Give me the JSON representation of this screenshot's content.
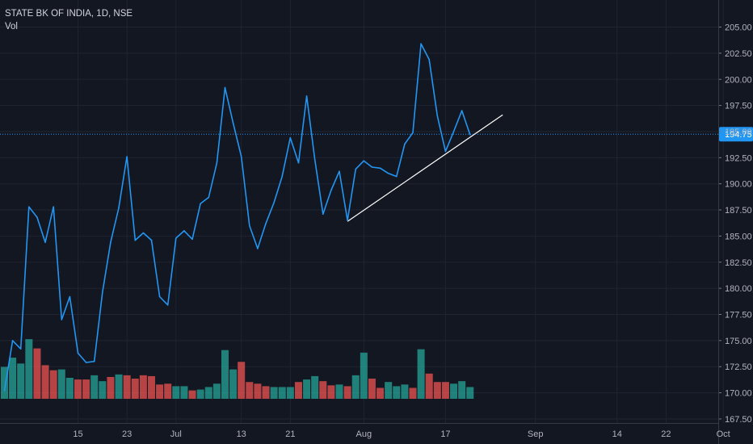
{
  "legend": {
    "symbol_line": "STATE BK OF INDIA, 1D, NSE",
    "volume_label": "Vol"
  },
  "colors": {
    "background": "#131722",
    "grid": "#1f2430",
    "line": "#2196f3",
    "trendline": "#ffffff",
    "volume_up": "#26a69a",
    "volume_down": "#ef5350",
    "last_price_tag": "#2196f3",
    "axis_text": "#b2b5be"
  },
  "chart_data": {
    "type": "line",
    "title": "STATE BK OF INDIA, 1D, NSE",
    "xlabel": "",
    "ylabel": "",
    "ylim": [
      166.8,
      206.2
    ],
    "y_ticks": [
      "205.00",
      "202.50",
      "200.00",
      "197.50",
      "195.00",
      "192.50",
      "190.00",
      "187.50",
      "185.00",
      "182.50",
      "180.00",
      "177.50",
      "175.00",
      "172.50",
      "170.00",
      "167.50"
    ],
    "x_tick_labels": [
      {
        "label": "15",
        "index": 9
      },
      {
        "label": "23",
        "index": 15
      },
      {
        "label": "Jul",
        "index": 21
      },
      {
        "label": "13",
        "index": 29
      },
      {
        "label": "21",
        "index": 35
      },
      {
        "label": "Aug",
        "index": 44
      },
      {
        "label": "17",
        "index": 54
      },
      {
        "label": "Sep",
        "index": 65
      },
      {
        "label": "14",
        "index": 75
      },
      {
        "label": "22",
        "index": 81
      },
      {
        "label": "Oct",
        "index": 88
      }
    ],
    "x_index_range": [
      0,
      92
    ],
    "grid": true,
    "series": [
      {
        "values": [
          170.2,
          175.0,
          174.2,
          187.8,
          186.8,
          184.4,
          187.8,
          177.0,
          179.2,
          173.8,
          172.9,
          173.0,
          179.6,
          184.4,
          187.7,
          192.6,
          184.6,
          185.3,
          184.6,
          179.2,
          178.4,
          184.8,
          185.5,
          184.7,
          188.1,
          188.7,
          192.0,
          199.2,
          195.8,
          192.6,
          186.0,
          183.8,
          186.2,
          188.2,
          190.7,
          194.4,
          192.0,
          198.4,
          192.3,
          187.1,
          189.4,
          191.2,
          186.5,
          191.4,
          192.2,
          191.6,
          191.5,
          191.0,
          190.7,
          193.8,
          194.9,
          203.4,
          201.9,
          196.5,
          193.1,
          195.0,
          197.0,
          194.7
        ]
      }
    ],
    "volume": {
      "scale_max": 100,
      "values": [
        38,
        49,
        42,
        71,
        60,
        40,
        34,
        35,
        25,
        23,
        23,
        28,
        21,
        26,
        29,
        28,
        24,
        28,
        27,
        17,
        18,
        15,
        15,
        10,
        11,
        14,
        18,
        58,
        35,
        44,
        20,
        18,
        15,
        14,
        14,
        14,
        20,
        23,
        27,
        21,
        16,
        17,
        15,
        28,
        55,
        24,
        13,
        20,
        15,
        17,
        13,
        59,
        30,
        20,
        20,
        18,
        21,
        14
      ],
      "directions": [
        "up",
        "up",
        "up",
        "up",
        "down",
        "down",
        "down",
        "up",
        "up",
        "down",
        "down",
        "up",
        "up",
        "down",
        "up",
        "down",
        "down",
        "down",
        "down",
        "down",
        "down",
        "up",
        "up",
        "down",
        "up",
        "up",
        "up",
        "up",
        "up",
        "down",
        "down",
        "down",
        "down",
        "up",
        "up",
        "up",
        "down",
        "up",
        "up",
        "down",
        "down",
        "up",
        "down",
        "up",
        "up",
        "down",
        "down",
        "up",
        "up",
        "up",
        "down",
        "up",
        "down",
        "down",
        "down",
        "up",
        "up",
        "up"
      ]
    },
    "trendline": {
      "start": {
        "index": 42,
        "value": 186.4
      },
      "end": {
        "index": 61,
        "value": 196.6
      }
    },
    "last_price": {
      "value": 194.75,
      "label": "194.75"
    }
  }
}
